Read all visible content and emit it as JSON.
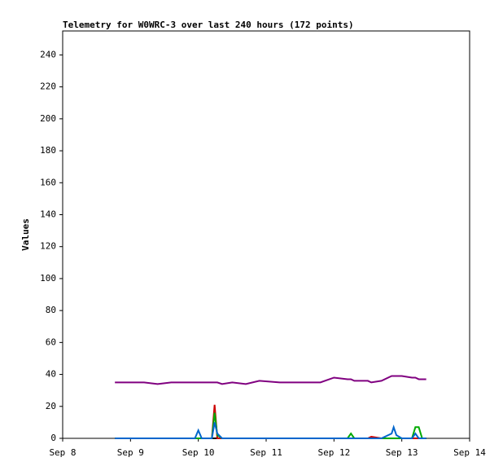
{
  "chart_data": {
    "type": "line",
    "title": "Telemetry for W0WRC-3 over last 240 hours (172 points)",
    "y_label": "Values",
    "x": [
      8.77,
      8.9,
      9.0,
      9.2,
      9.4,
      9.6,
      9.8,
      9.95,
      10.0,
      10.05,
      10.2,
      10.24,
      10.28,
      10.35,
      10.5,
      10.7,
      10.9,
      11.2,
      11.5,
      11.8,
      12.0,
      12.2,
      12.25,
      12.3,
      12.5,
      12.55,
      12.7,
      12.85,
      12.88,
      12.92,
      13.0,
      13.15,
      13.2,
      13.25,
      13.3,
      13.36
    ],
    "series": [
      {
        "color": "#000000",
        "values": [
          0,
          0,
          0,
          0,
          0,
          0,
          0,
          0,
          0,
          0,
          0,
          0,
          0,
          0,
          0,
          0,
          0,
          0,
          0,
          0,
          0,
          0,
          0,
          0,
          0,
          0,
          0,
          0,
          0,
          0,
          0,
          0,
          0,
          0,
          0,
          0
        ]
      },
      {
        "color": "#800080",
        "values": [
          35,
          35,
          35,
          35,
          34,
          35,
          35,
          35,
          35,
          35,
          35,
          35,
          35,
          34,
          35,
          34,
          36,
          35,
          35,
          35,
          38,
          37,
          37,
          36,
          36,
          35,
          36,
          39,
          39,
          39,
          39,
          38,
          38,
          37,
          37,
          37
        ]
      },
      {
        "color": "#cc0000",
        "values": [
          0,
          0,
          0,
          0,
          0,
          0,
          0,
          0,
          0,
          0,
          0,
          21,
          0,
          0,
          0,
          0,
          0,
          0,
          0,
          0,
          0,
          0,
          0,
          0,
          0,
          1,
          0,
          0,
          0,
          0,
          0,
          0,
          0,
          0,
          0,
          0
        ]
      },
      {
        "color": "#00aa00",
        "values": [
          0,
          0,
          0,
          0,
          0,
          0,
          0,
          0,
          0,
          0,
          0,
          16,
          2,
          0,
          0,
          0,
          0,
          0,
          0,
          0,
          0,
          0,
          3,
          0,
          0,
          0,
          0,
          0,
          0,
          0,
          0,
          0,
          7,
          7,
          0,
          0
        ]
      },
      {
        "color": "#0066cc",
        "values": [
          0,
          0,
          0,
          0,
          0,
          0,
          0,
          0,
          5,
          0,
          0,
          10,
          3,
          0,
          0,
          0,
          0,
          0,
          0,
          0,
          0,
          0,
          0,
          0,
          0,
          0,
          0,
          3,
          7,
          2,
          0,
          0,
          3,
          0,
          0,
          0
        ]
      }
    ],
    "xlim": [
      8,
      14
    ],
    "xticks": [
      {
        "value": 8,
        "label": "Sep 8"
      },
      {
        "value": 9,
        "label": "Sep 9"
      },
      {
        "value": 10,
        "label": "Sep 10"
      },
      {
        "value": 11,
        "label": "Sep 11"
      },
      {
        "value": 12,
        "label": "Sep 12"
      },
      {
        "value": 13,
        "label": "Sep 13"
      },
      {
        "value": 14,
        "label": "Sep 14"
      }
    ],
    "ylim": [
      0,
      255
    ],
    "yticks": [
      0,
      20,
      40,
      60,
      80,
      100,
      120,
      140,
      160,
      180,
      200,
      220,
      240
    ],
    "grid": false
  }
}
